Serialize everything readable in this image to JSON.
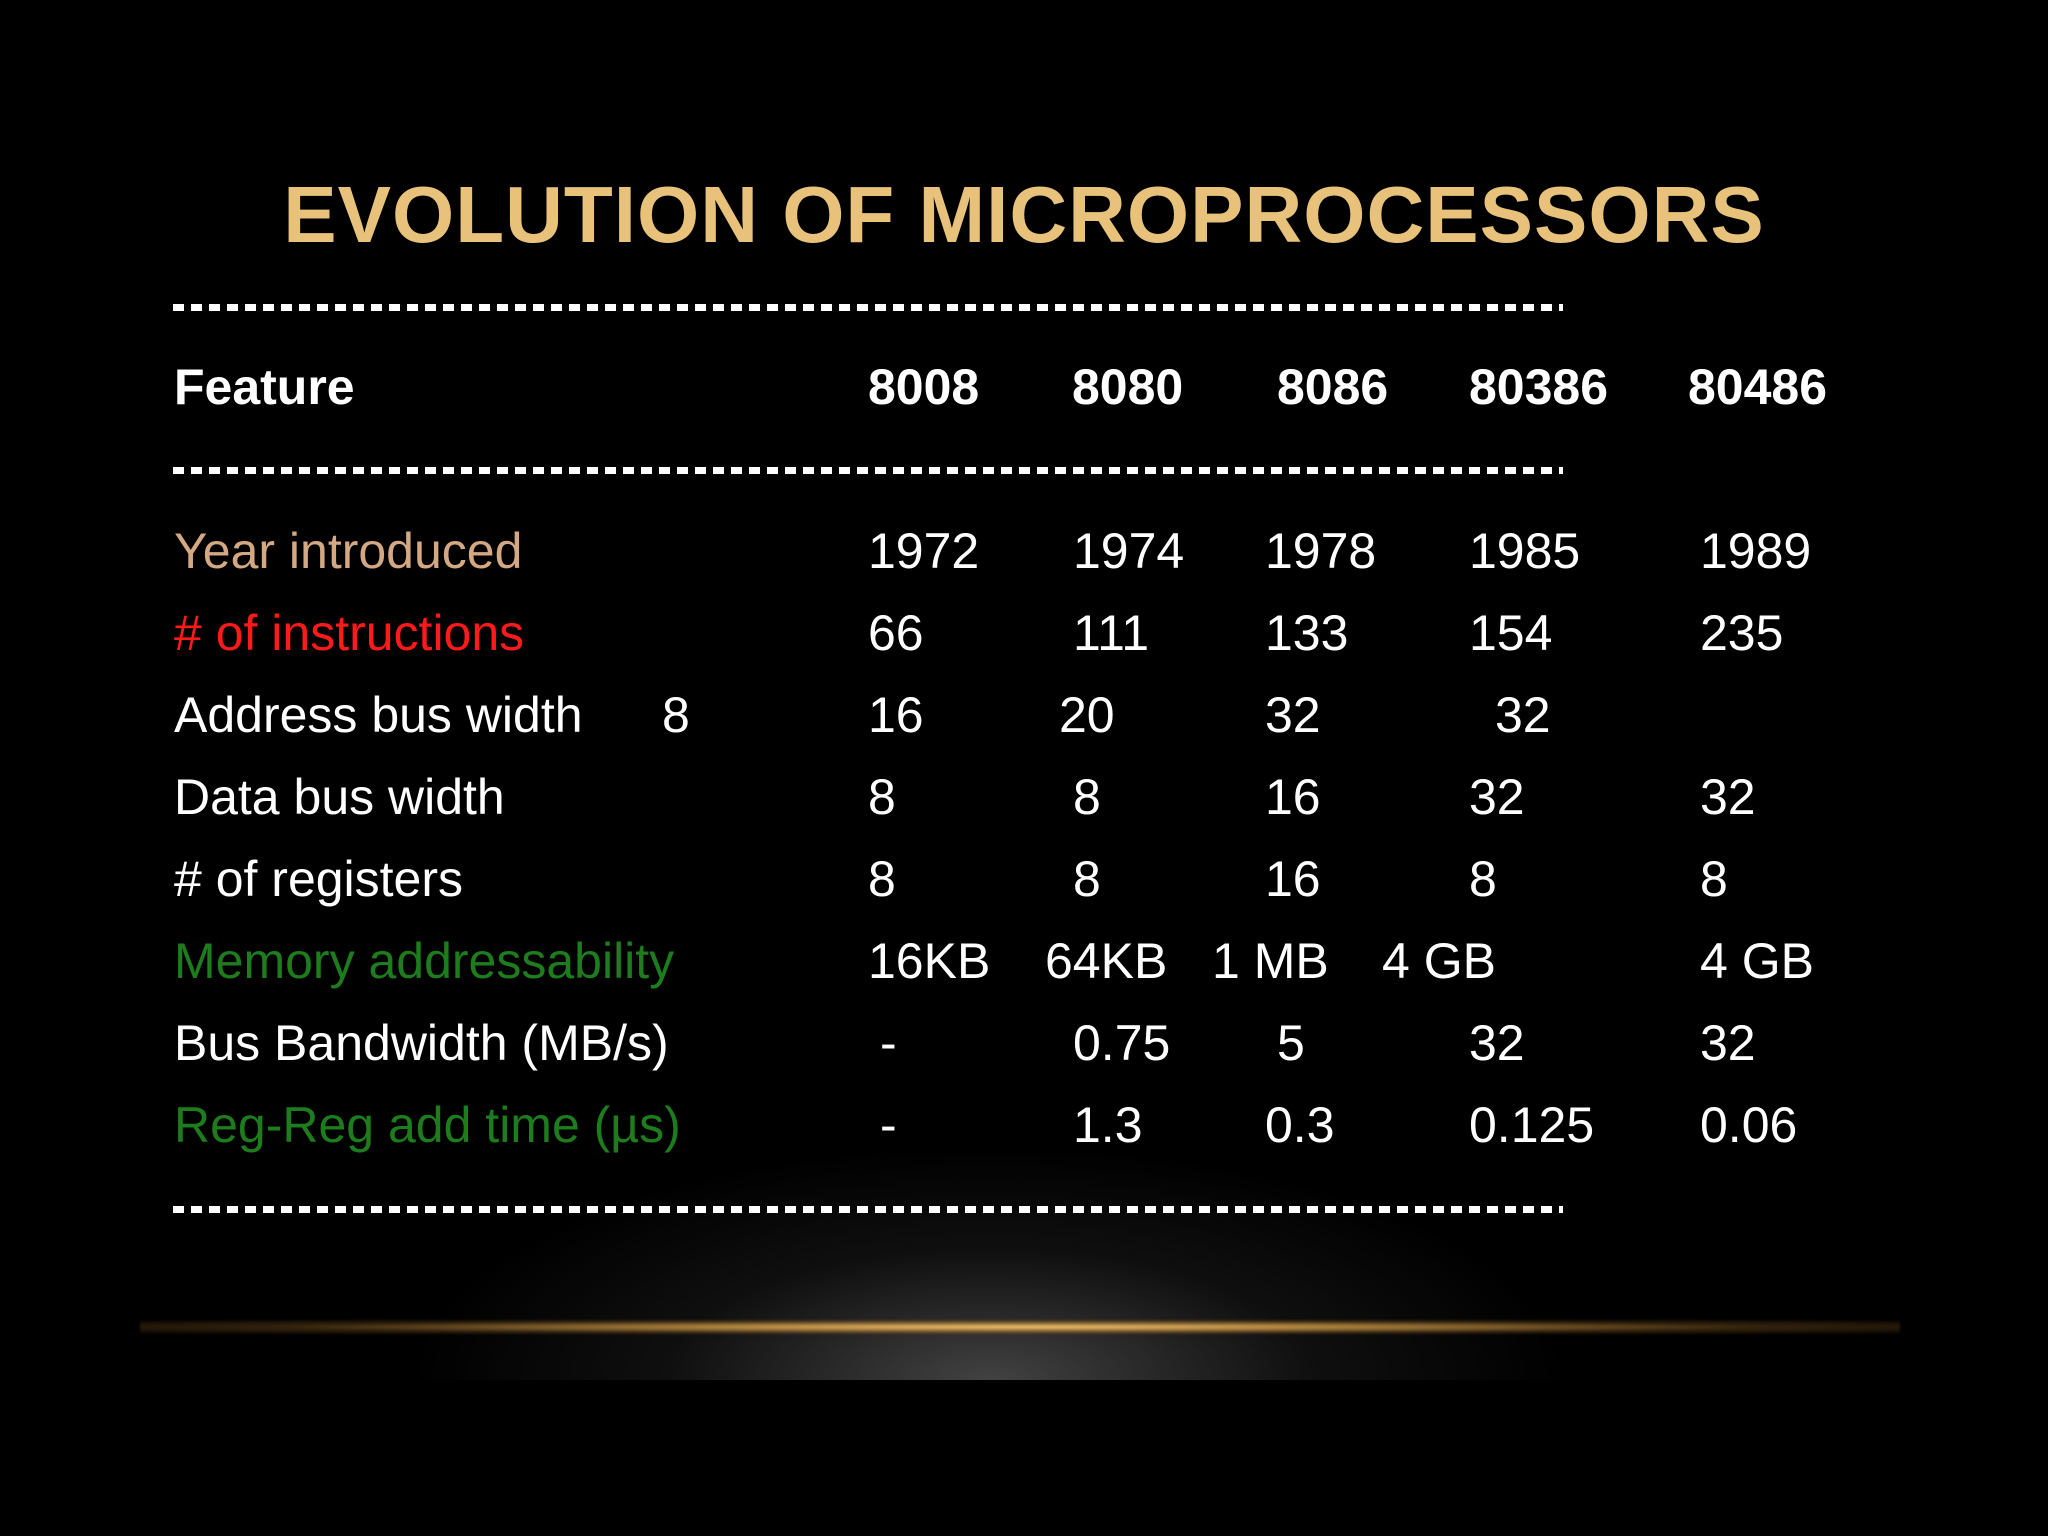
{
  "slide": {
    "title": "EVOLUTION OF MICROPROCESSORS",
    "divider_text": "--------------------------------------------------------------------------------------------",
    "header": {
      "feature": "Feature",
      "cols": [
        "8008",
        "8080",
        "8086",
        "80386",
        "80486"
      ]
    },
    "rows": [
      {
        "label": "Year introduced",
        "extra": "",
        "values": [
          "1972",
          "1974",
          "1978",
          "1985",
          "1989"
        ],
        "label_color": "#d4a882"
      },
      {
        "label": "# of instructions",
        "extra": "",
        "values": [
          "66",
          "111",
          "133",
          "154",
          "235"
        ],
        "label_color": "#ff1a1a"
      },
      {
        "label": "Address bus width",
        "extra": "8",
        "values": [
          "16",
          "20",
          "32",
          "32",
          ""
        ],
        "label_color": "#ffffff"
      },
      {
        "label": "Data bus width",
        "extra": "",
        "values": [
          "8",
          "8",
          "16",
          "32",
          "32"
        ],
        "label_color": "#ffffff"
      },
      {
        "label": "# of registers",
        "extra": "",
        "values": [
          "8",
          "8",
          "16",
          "8",
          "8"
        ],
        "label_color": "#ffffff"
      },
      {
        "label": "Memory addressability",
        "extra": "",
        "values": [
          "16KB",
          "64KB",
          "1 MB",
          "4 GB",
          "4 GB"
        ],
        "label_color": "#1d7d1d"
      },
      {
        "label": "Bus Bandwidth (MB/s)",
        "extra": "",
        "values": [
          "-",
          "0.75",
          "5",
          "32",
          "32"
        ],
        "label_color": "#ffffff"
      },
      {
        "label": "Reg-Reg add time (µs)",
        "extra": "",
        "values": [
          "-",
          "1.3",
          "0.3",
          "0.125",
          "0.06"
        ],
        "label_color": "#1d7d1d"
      }
    ]
  },
  "colors": {
    "title": "#e8c27a",
    "background": "#000000",
    "gold_line": "#e0b060"
  }
}
